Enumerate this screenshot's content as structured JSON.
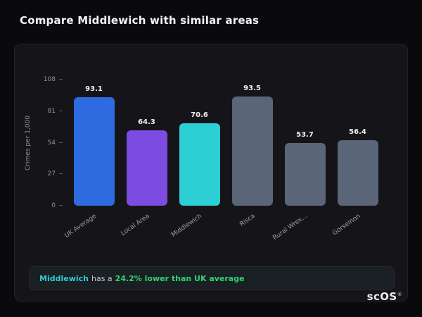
{
  "title": "Compare Middlewich with similar areas",
  "chart_data": {
    "type": "bar",
    "ylabel": "Crimes per 1,000",
    "categories": [
      "UK Average",
      "Local Area",
      "Middlewich",
      "Risca",
      "Rural Wrex...",
      "Gorseinon"
    ],
    "values": [
      93.1,
      64.3,
      70.6,
      93.5,
      53.7,
      56.4
    ],
    "bar_colors": [
      "#2f6be0",
      "#7c4be0",
      "#2bcfd4",
      "#5b6578",
      "#5b6578",
      "#5b6578"
    ],
    "yticks": [
      0,
      27,
      54,
      81,
      108
    ],
    "ylim": [
      0,
      108
    ],
    "grid": false,
    "legend": false,
    "value_labels": true
  },
  "note": {
    "subject": "Middlewich",
    "connector": "has a",
    "stat": "24.2% lower than UK average"
  },
  "branding": {
    "logo": "scOS",
    "registered_mark": "®"
  },
  "colors": {
    "page_bg": "#0a0a0d",
    "card_bg": "#151519",
    "accent_teal": "#2bcfd4",
    "accent_green": "#2fd370",
    "muted_text": "#8b93a0"
  }
}
